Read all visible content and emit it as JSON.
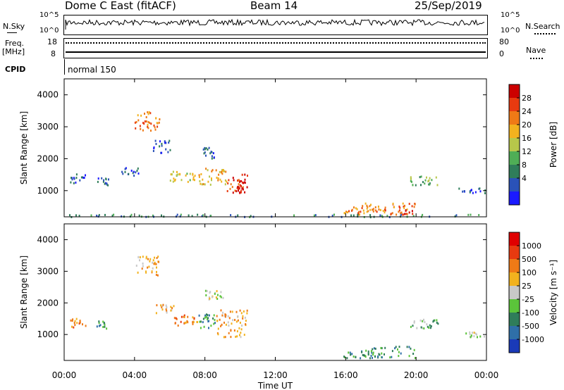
{
  "header": {
    "station": "Dome C East (fitACF)",
    "beam": "Beam 14",
    "date": "25/Sep/2019"
  },
  "status": {
    "nsky_label": "N.Sky",
    "nsky_ticks": [
      "10^5",
      "10^0"
    ],
    "nsearch_label": "N.Search",
    "nsearch_ticks": [
      "10^5",
      "10^0"
    ],
    "freq_label": "Freq.",
    "freq_unit": "[MHz]",
    "freq_ticks": [
      "18",
      "8"
    ],
    "nave_label": "Nave",
    "nave_ticks": [
      "80",
      "0"
    ],
    "cpid_label": "CPID",
    "cpid_value": "normal 150"
  },
  "chart_data": [
    {
      "type": "heatmap",
      "name": "power",
      "ylabel": "Slant Range [km]",
      "xlabel": "Time UT",
      "x_ticks": [
        "00:00",
        "04:00",
        "08:00",
        "12:00",
        "16:00",
        "20:00",
        "00:00"
      ],
      "y_ticks": [
        1000,
        2000,
        3000,
        4000
      ],
      "ylim": [
        180,
        4500
      ],
      "xlim_hours": [
        0,
        24
      ],
      "colorbar": {
        "label": "Power [dB]",
        "ticks": [
          "4",
          "8",
          "12",
          "16",
          "20",
          "24",
          "28"
        ],
        "colors": [
          "#1a1aff",
          "#2a52b8",
          "#2f7d5a",
          "#4fae56",
          "#b7c74a",
          "#f2b21e",
          "#ef7a16",
          "#e83a10",
          "#cc0000"
        ]
      },
      "patches": [
        {
          "t0": 6.0,
          "t1": 7.6,
          "r0": 1300,
          "r1": 1650,
          "level": 4
        },
        {
          "t0": 7.6,
          "t1": 9.2,
          "r0": 1200,
          "r1": 1750,
          "level": 5
        },
        {
          "t0": 9.2,
          "t1": 10.4,
          "r0": 950,
          "r1": 1600,
          "level": 7
        },
        {
          "t0": 9.8,
          "t1": 10.3,
          "r0": 950,
          "r1": 1300,
          "level": 8
        },
        {
          "t0": 15.8,
          "t1": 17.0,
          "r0": 280,
          "r1": 550,
          "level": 6
        },
        {
          "t0": 17.0,
          "t1": 20.0,
          "r0": 280,
          "r1": 650,
          "level": 6
        },
        {
          "t0": 18.5,
          "t1": 19.8,
          "r0": 280,
          "r1": 450,
          "level": 7
        },
        {
          "t0": 19.6,
          "t1": 21.3,
          "r0": 1200,
          "r1": 1500,
          "level": 3
        },
        {
          "t0": 0.3,
          "t1": 1.2,
          "r0": 1250,
          "r1": 1550,
          "level": 1
        },
        {
          "t0": 1.8,
          "t1": 2.6,
          "r0": 1200,
          "r1": 1450,
          "level": 1
        },
        {
          "t0": 3.2,
          "t1": 4.2,
          "r0": 1500,
          "r1": 1750,
          "level": 1
        },
        {
          "t0": 5.0,
          "t1": 6.0,
          "r0": 2200,
          "r1": 2600,
          "level": 1
        },
        {
          "t0": 4.0,
          "t1": 5.4,
          "r0": 2900,
          "r1": 3500,
          "level": 6
        },
        {
          "t0": 7.8,
          "t1": 8.6,
          "r0": 2000,
          "r1": 2400,
          "level": 1
        },
        {
          "t0": 22.4,
          "t1": 24.0,
          "r0": 950,
          "r1": 1100,
          "level": 1
        },
        {
          "t0": 0.0,
          "t1": 24.0,
          "r0": 200,
          "r1": 280,
          "level": 2
        }
      ]
    },
    {
      "type": "heatmap",
      "name": "velocity",
      "ylabel": "Slant Range [km]",
      "xlabel": "Time UT",
      "x_ticks": [
        "00:00",
        "04:00",
        "08:00",
        "12:00",
        "16:00",
        "20:00",
        "00:00"
      ],
      "y_ticks": [
        1000,
        2000,
        3000,
        4000
      ],
      "ylim": [
        180,
        4500
      ],
      "xlim_hours": [
        0,
        24
      ],
      "colorbar": {
        "label": "Velocity [m s⁻¹]",
        "ticks": [
          "1000",
          "500",
          "100",
          "25",
          "-25",
          "-100",
          "-500",
          "-1000"
        ],
        "colors": [
          "#1a3ab8",
          "#2f6fa8",
          "#2f7d5a",
          "#5bc43a",
          "#c8c8c8",
          "#f2b21e",
          "#ef7a16",
          "#e83a10",
          "#e00000"
        ]
      },
      "patches": [
        {
          "t0": 6.0,
          "t1": 7.6,
          "r0": 1300,
          "r1": 1650,
          "level": 6
        },
        {
          "t0": 7.6,
          "t1": 8.6,
          "r0": 1200,
          "r1": 1700,
          "level": 2
        },
        {
          "t0": 8.6,
          "t1": 10.4,
          "r0": 950,
          "r1": 1800,
          "level": 5
        },
        {
          "t0": 15.8,
          "t1": 17.2,
          "r0": 280,
          "r1": 550,
          "level": 2
        },
        {
          "t0": 17.2,
          "t1": 20.0,
          "r0": 280,
          "r1": 650,
          "level": 2
        },
        {
          "t0": 19.6,
          "t1": 21.3,
          "r0": 1200,
          "r1": 1500,
          "level": 3
        },
        {
          "t0": 0.3,
          "t1": 1.2,
          "r0": 1250,
          "r1": 1550,
          "level": 6
        },
        {
          "t0": 1.8,
          "t1": 2.6,
          "r0": 1200,
          "r1": 1450,
          "level": 2
        },
        {
          "t0": 8.0,
          "t1": 9.0,
          "r0": 2100,
          "r1": 2500,
          "level": 4
        },
        {
          "t0": 4.0,
          "t1": 5.4,
          "r0": 2900,
          "r1": 3500,
          "level": 5
        },
        {
          "t0": 5.2,
          "t1": 6.2,
          "r0": 1700,
          "r1": 2000,
          "level": 5
        },
        {
          "t0": 22.4,
          "t1": 24.0,
          "r0": 950,
          "r1": 1100,
          "level": 4
        }
      ]
    }
  ]
}
